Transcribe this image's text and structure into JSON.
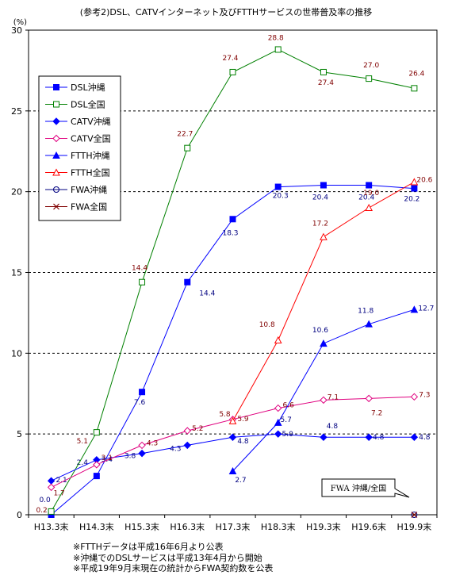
{
  "chart_data": {
    "type": "line",
    "title": "(参考2)DSL、CATVインターネット及びFTTHサービスの世帯普及率の推移",
    "ylabel": "(%)",
    "ylim": [
      0,
      30
    ],
    "yticks": [
      0,
      5,
      10,
      15,
      20,
      25,
      30
    ],
    "grid": "horizontal dotted",
    "legend_position": "upper-left",
    "categories": [
      "H13.3末",
      "H14.3末",
      "H15.3末",
      "H16.3末",
      "H17.3末",
      "H18.3末",
      "H19.3末",
      "H19.6末",
      "H19.9末"
    ],
    "series": [
      {
        "name": "DSL沖縄",
        "color": "#0000ff",
        "marker": "square-filled",
        "values": [
          0.0,
          2.4,
          7.6,
          14.4,
          18.3,
          20.3,
          20.4,
          20.4,
          20.2
        ],
        "labels": [
          "0.0",
          "2.4",
          "7.6",
          "14.4",
          "18.3",
          "20.3",
          "20.4",
          "20.4",
          "20.2"
        ]
      },
      {
        "name": "DSL全国",
        "color": "#008000",
        "marker": "square-open",
        "values": [
          0.2,
          5.1,
          14.4,
          22.7,
          27.4,
          28.8,
          27.4,
          27.0,
          26.4
        ],
        "labels": [
          "0.2",
          "5.1",
          "14.4",
          "22.7",
          "27.4",
          "28.8",
          "27.4",
          "27.0",
          "26.4"
        ]
      },
      {
        "name": "CATV沖縄",
        "color": "#0000ff",
        "marker": "diamond-filled",
        "values": [
          2.1,
          3.4,
          3.8,
          4.3,
          4.8,
          5.0,
          4.8,
          4.8,
          4.8
        ],
        "labels": [
          "2.1",
          "3.4",
          "3.8",
          "4.3",
          "4.8",
          "5.0",
          "4.8",
          "4.8",
          "4.8"
        ]
      },
      {
        "name": "CATV全国",
        "color": "#e0007f",
        "marker": "diamond-open",
        "values": [
          1.7,
          3.1,
          4.3,
          5.2,
          5.9,
          6.6,
          7.1,
          7.2,
          7.3
        ],
        "labels": [
          "1.7",
          "3.1",
          "4.3",
          "5.2",
          "5.9",
          "6.6",
          "7.1",
          "7.2",
          "7.3"
        ]
      },
      {
        "name": "FTTH沖縄",
        "color": "#0000ff",
        "marker": "triangle-filled",
        "values": [
          null,
          null,
          null,
          null,
          2.7,
          5.7,
          10.6,
          11.8,
          12.7
        ],
        "labels": [
          "",
          "",
          "",
          "",
          "2.7",
          "5.7",
          "10.6",
          "11.8",
          "12.7"
        ]
      },
      {
        "name": "FTTH全国",
        "color": "#ff0000",
        "marker": "triangle-open",
        "values": [
          null,
          null,
          null,
          null,
          5.8,
          10.8,
          17.2,
          19.0,
          20.6
        ],
        "labels": [
          "",
          "",
          "",
          "",
          "5.8",
          "10.8",
          "17.2",
          "19.0",
          "20.6"
        ]
      },
      {
        "name": "FWA沖縄",
        "color": "#000080",
        "marker": "circle-open",
        "values": [
          null,
          null,
          null,
          null,
          null,
          null,
          null,
          null,
          0.0
        ],
        "labels": []
      },
      {
        "name": "FWA全国",
        "color": "#800000",
        "marker": "x",
        "values": [
          null,
          null,
          null,
          null,
          null,
          null,
          null,
          null,
          0.0
        ],
        "labels": []
      }
    ],
    "annotation": "FWA 沖縄/全国"
  },
  "footnotes": [
    "※FTTHデータは平成16年6月より公表",
    "※沖縄でのDSLサービスは平成13年4月から開始",
    "※平成19年9月末現在の統計からFWA契約数を公表"
  ]
}
